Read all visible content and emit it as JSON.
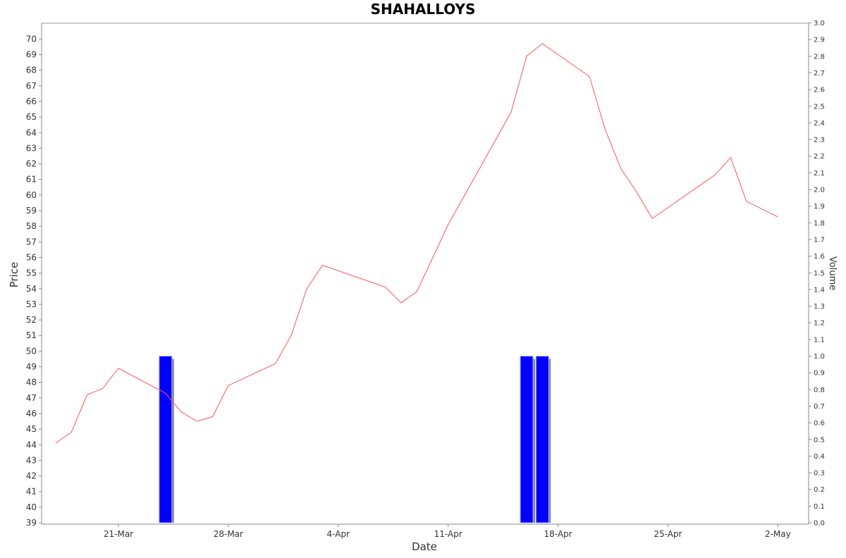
{
  "chart_data": {
    "type": "line",
    "title": "SHAHALLOYS",
    "xlabel": "Date",
    "ylabel": "Price",
    "y2label": "Volume",
    "ylim": [
      39,
      71
    ],
    "y2lim": [
      0,
      3
    ],
    "x_ticks": [
      {
        "label": "21-Mar",
        "day": 21
      },
      {
        "label": "28-Mar",
        "day": 28
      },
      {
        "label": "4-Apr",
        "day": 35
      },
      {
        "label": "11-Apr",
        "day": 42
      },
      {
        "label": "18-Apr",
        "day": 49
      },
      {
        "label": "25-Apr",
        "day": 56
      },
      {
        "label": "2-May",
        "day": 63
      }
    ],
    "price_color": "#ff5555",
    "volume_color": "#0000ff",
    "grid": false,
    "series": [
      {
        "type": "line",
        "x": [
          "2017-03-17",
          "2017-03-18",
          "2017-03-19",
          "2017-03-20",
          "2017-03-21",
          "2017-03-24",
          "2017-03-25",
          "2017-03-26",
          "2017-03-27",
          "2017-03-28",
          "2017-03-31",
          "2017-04-01",
          "2017-04-02",
          "2017-04-03",
          "2017-04-07",
          "2017-04-08",
          "2017-04-09",
          "2017-04-11",
          "2017-04-15",
          "2017-04-16",
          "2017-04-17",
          "2017-04-20",
          "2017-04-21",
          "2017-04-22",
          "2017-04-23",
          "2017-04-24",
          "2017-04-28",
          "2017-04-29",
          "2017-04-30",
          "2017-05-02"
        ],
        "values": [
          44.1,
          44.8,
          47.2,
          47.6,
          48.9,
          47.3,
          46.1,
          45.5,
          45.8,
          47.8,
          49.2,
          51.0,
          54.0,
          55.5,
          54.1,
          53.1,
          53.8,
          58.1,
          65.3,
          68.9,
          69.7,
          67.6,
          64.2,
          61.7,
          60.2,
          58.5,
          61.3,
          62.4,
          59.6,
          58.6
        ]
      },
      {
        "type": "bar",
        "x": [
          "2017-03-24",
          "2017-04-16",
          "2017-04-17"
        ],
        "values": [
          1.0,
          1.0,
          1.0
        ]
      }
    ]
  }
}
